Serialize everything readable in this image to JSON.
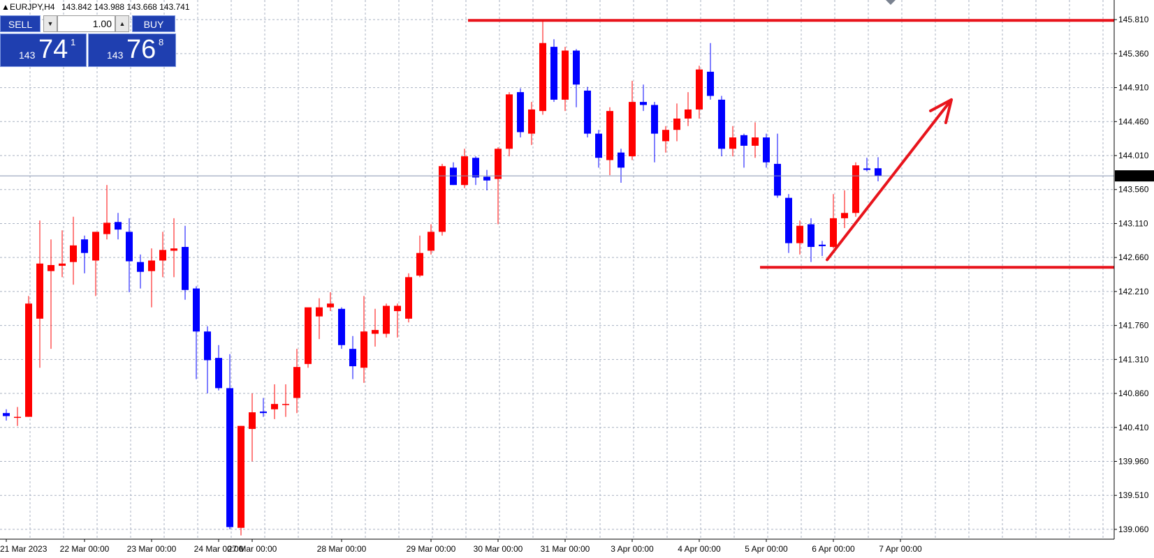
{
  "header": {
    "symbol": "EURJPY,H4",
    "ohlc": "143.842 143.988 143.668 143.741"
  },
  "trade_panel": {
    "sell_label": "SELL",
    "buy_label": "BUY",
    "volume": "1.00",
    "sell_price": {
      "prefix": "143",
      "big": "74",
      "sup": "1"
    },
    "buy_price": {
      "prefix": "143",
      "big": "76",
      "sup": "8"
    }
  },
  "icons": {
    "spin_down": "▼",
    "spin_up": "▲"
  },
  "colors": {
    "bull": "#ff0000",
    "bear": "#0000ff",
    "grid": "#a9b2c2",
    "annotation": "#e8141c",
    "current_price_bg": "#000000",
    "current_price_line": "#8895b0",
    "buttons": "#1f3fb0"
  },
  "chart_data": {
    "type": "candlestick",
    "symbol": "EURJPY",
    "timeframe": "H4",
    "ylim": [
      138.93,
      146.07
    ],
    "y_ticks": [
      "145.810",
      "145.360",
      "144.910",
      "144.460",
      "144.010",
      "143.560",
      "143.110",
      "142.660",
      "142.210",
      "141.760",
      "141.310",
      "140.860",
      "140.410",
      "139.960",
      "139.510",
      "139.060"
    ],
    "x_labels": [
      "21 Mar 2023",
      "22 Mar 00:00",
      "23 Mar 00:00",
      "24 Mar 00:00",
      "27 Mar 00:00",
      "28 Mar 00:00",
      "29 Mar 00:00",
      "30 Mar 00:00",
      "31 Mar 00:00",
      "3 Apr 00:00",
      "4 Apr 00:00",
      "5 Apr 00:00",
      "6 Apr 00:00",
      "7 Apr 00:00"
    ],
    "x_label_candle_index": [
      0,
      7,
      13,
      19,
      22,
      30,
      38,
      44,
      50,
      56,
      62,
      68,
      74,
      80
    ],
    "current_price": "143.741",
    "current_price_value": 143.741,
    "candles": [
      {
        "o": 140.6,
        "h": 140.65,
        "l": 140.5,
        "c": 140.56
      },
      {
        "o": 140.55,
        "h": 140.68,
        "l": 140.43,
        "c": 140.55
      },
      {
        "o": 140.55,
        "h": 142.15,
        "l": 140.55,
        "c": 142.05
      },
      {
        "o": 141.85,
        "h": 143.15,
        "l": 141.2,
        "c": 142.58
      },
      {
        "o": 142.48,
        "h": 142.9,
        "l": 141.45,
        "c": 142.56
      },
      {
        "o": 142.55,
        "h": 143.02,
        "l": 142.4,
        "c": 142.58
      },
      {
        "o": 142.6,
        "h": 143.2,
        "l": 142.3,
        "c": 142.82
      },
      {
        "o": 142.9,
        "h": 142.95,
        "l": 142.45,
        "c": 142.72
      },
      {
        "o": 142.62,
        "h": 143.0,
        "l": 142.15,
        "c": 143.0
      },
      {
        "o": 142.97,
        "h": 143.62,
        "l": 142.9,
        "c": 143.12
      },
      {
        "o": 143.13,
        "h": 143.25,
        "l": 142.9,
        "c": 143.03
      },
      {
        "o": 143.0,
        "h": 143.18,
        "l": 142.2,
        "c": 142.61
      },
      {
        "o": 142.6,
        "h": 142.7,
        "l": 142.25,
        "c": 142.47
      },
      {
        "o": 142.48,
        "h": 142.78,
        "l": 142.0,
        "c": 142.62
      },
      {
        "o": 142.62,
        "h": 143.0,
        "l": 142.4,
        "c": 142.76
      },
      {
        "o": 142.75,
        "h": 143.18,
        "l": 142.4,
        "c": 142.78
      },
      {
        "o": 142.8,
        "h": 143.08,
        "l": 142.1,
        "c": 142.23
      },
      {
        "o": 142.25,
        "h": 142.28,
        "l": 141.05,
        "c": 141.68
      },
      {
        "o": 141.68,
        "h": 141.75,
        "l": 140.86,
        "c": 141.3
      },
      {
        "o": 141.33,
        "h": 141.5,
        "l": 140.9,
        "c": 140.93
      },
      {
        "o": 140.93,
        "h": 141.38,
        "l": 139.06,
        "c": 139.09
      },
      {
        "o": 139.08,
        "h": 140.43,
        "l": 138.98,
        "c": 140.43
      },
      {
        "o": 140.39,
        "h": 140.86,
        "l": 139.96,
        "c": 140.61
      },
      {
        "o": 140.62,
        "h": 140.8,
        "l": 140.55,
        "c": 140.6
      },
      {
        "o": 140.65,
        "h": 140.98,
        "l": 140.52,
        "c": 140.72
      },
      {
        "o": 140.72,
        "h": 140.98,
        "l": 140.55,
        "c": 140.72
      },
      {
        "o": 140.8,
        "h": 141.45,
        "l": 140.6,
        "c": 141.21
      },
      {
        "o": 141.25,
        "h": 141.98,
        "l": 141.2,
        "c": 142.0
      },
      {
        "o": 141.88,
        "h": 142.12,
        "l": 141.58,
        "c": 142.0
      },
      {
        "o": 142.0,
        "h": 142.2,
        "l": 141.95,
        "c": 142.05
      },
      {
        "o": 141.98,
        "h": 142.0,
        "l": 141.45,
        "c": 141.5
      },
      {
        "o": 141.45,
        "h": 141.62,
        "l": 141.05,
        "c": 141.22
      },
      {
        "o": 141.2,
        "h": 142.15,
        "l": 141.0,
        "c": 141.68
      },
      {
        "o": 141.65,
        "h": 141.98,
        "l": 141.48,
        "c": 141.7
      },
      {
        "o": 141.65,
        "h": 142.05,
        "l": 141.6,
        "c": 142.02
      },
      {
        "o": 141.95,
        "h": 142.05,
        "l": 141.6,
        "c": 142.02
      },
      {
        "o": 141.85,
        "h": 142.45,
        "l": 141.8,
        "c": 142.4
      },
      {
        "o": 142.42,
        "h": 142.95,
        "l": 142.4,
        "c": 142.72
      },
      {
        "o": 142.75,
        "h": 143.1,
        "l": 142.7,
        "c": 143.0
      },
      {
        "o": 143.0,
        "h": 143.9,
        "l": 142.95,
        "c": 143.87
      },
      {
        "o": 143.85,
        "h": 143.92,
        "l": 143.62,
        "c": 143.62
      },
      {
        "o": 143.62,
        "h": 144.1,
        "l": 143.58,
        "c": 144.0
      },
      {
        "o": 143.98,
        "h": 144.0,
        "l": 143.62,
        "c": 143.72
      },
      {
        "o": 143.73,
        "h": 143.82,
        "l": 143.55,
        "c": 143.68
      },
      {
        "o": 143.7,
        "h": 144.12,
        "l": 143.1,
        "c": 144.1
      },
      {
        "o": 144.1,
        "h": 144.85,
        "l": 144.0,
        "c": 144.82
      },
      {
        "o": 144.85,
        "h": 144.9,
        "l": 144.25,
        "c": 144.32
      },
      {
        "o": 144.3,
        "h": 144.72,
        "l": 144.15,
        "c": 144.62
      },
      {
        "o": 144.6,
        "h": 145.8,
        "l": 144.55,
        "c": 145.5
      },
      {
        "o": 145.45,
        "h": 145.55,
        "l": 144.72,
        "c": 144.75
      },
      {
        "o": 144.75,
        "h": 145.45,
        "l": 144.6,
        "c": 145.4
      },
      {
        "o": 145.4,
        "h": 145.42,
        "l": 144.65,
        "c": 144.95
      },
      {
        "o": 144.87,
        "h": 144.92,
        "l": 144.25,
        "c": 144.3
      },
      {
        "o": 144.3,
        "h": 144.35,
        "l": 143.85,
        "c": 143.98
      },
      {
        "o": 143.95,
        "h": 144.65,
        "l": 143.75,
        "c": 144.6
      },
      {
        "o": 144.05,
        "h": 144.1,
        "l": 143.65,
        "c": 143.85
      },
      {
        "o": 144.0,
        "h": 145.0,
        "l": 143.95,
        "c": 144.72
      },
      {
        "o": 144.72,
        "h": 144.95,
        "l": 144.6,
        "c": 144.68
      },
      {
        "o": 144.68,
        "h": 144.72,
        "l": 143.92,
        "c": 144.3
      },
      {
        "o": 144.2,
        "h": 144.4,
        "l": 144.05,
        "c": 144.35
      },
      {
        "o": 144.35,
        "h": 144.7,
        "l": 144.2,
        "c": 144.5
      },
      {
        "o": 144.5,
        "h": 144.85,
        "l": 144.4,
        "c": 144.62
      },
      {
        "o": 144.62,
        "h": 145.2,
        "l": 144.5,
        "c": 145.15
      },
      {
        "o": 145.12,
        "h": 145.5,
        "l": 144.75,
        "c": 144.8
      },
      {
        "o": 144.75,
        "h": 144.8,
        "l": 144.0,
        "c": 144.1
      },
      {
        "o": 144.1,
        "h": 144.4,
        "l": 144.0,
        "c": 144.25
      },
      {
        "o": 144.28,
        "h": 144.3,
        "l": 143.85,
        "c": 144.14
      },
      {
        "o": 144.14,
        "h": 144.45,
        "l": 143.98,
        "c": 144.25
      },
      {
        "o": 144.25,
        "h": 144.3,
        "l": 143.85,
        "c": 143.92
      },
      {
        "o": 143.9,
        "h": 144.3,
        "l": 143.45,
        "c": 143.48
      },
      {
        "o": 143.45,
        "h": 143.5,
        "l": 142.72,
        "c": 142.85
      },
      {
        "o": 142.85,
        "h": 143.15,
        "l": 142.7,
        "c": 143.08
      },
      {
        "o": 143.1,
        "h": 143.18,
        "l": 142.6,
        "c": 142.8
      },
      {
        "o": 142.83,
        "h": 142.88,
        "l": 142.68,
        "c": 142.81
      },
      {
        "o": 142.8,
        "h": 143.5,
        "l": 142.78,
        "c": 143.18
      },
      {
        "o": 143.18,
        "h": 143.55,
        "l": 143.05,
        "c": 143.25
      },
      {
        "o": 143.25,
        "h": 143.92,
        "l": 143.2,
        "c": 143.88
      },
      {
        "o": 143.84,
        "h": 143.98,
        "l": 143.8,
        "c": 143.82
      },
      {
        "o": 143.842,
        "h": 143.988,
        "l": 143.668,
        "c": 143.741
      }
    ],
    "annotations": {
      "resistance_level": 145.8,
      "support_level": 142.53,
      "arrow": {
        "from": [
          142.63,
          "6 Apr 00:00"
        ],
        "to": [
          144.75,
          "7 Apr 00:00"
        ]
      }
    }
  }
}
